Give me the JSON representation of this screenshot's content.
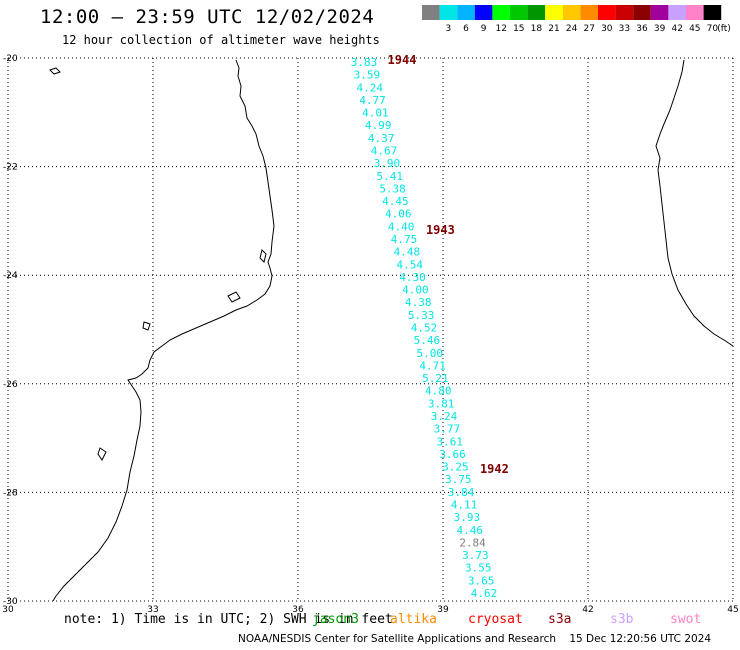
{
  "header": {
    "title": "12:00 — 23:59 UTC 12/02/2024",
    "subtitle": "12 hour collection of altimeter wave heights"
  },
  "legend": {
    "labels": [
      "3",
      "6",
      "9",
      "12",
      "15",
      "18",
      "21",
      "24",
      "27",
      "30",
      "33",
      "36",
      "39",
      "42",
      "45",
      "70"
    ],
    "unit": "(ft)",
    "colors": [
      "#808080",
      "#00e5e5",
      "#00b4ff",
      "#0000ff",
      "#00ff00",
      "#00c800",
      "#009600",
      "#ffff00",
      "#ffc800",
      "#ff8c00",
      "#ff0000",
      "#c80000",
      "#8c0000",
      "#a0009b",
      "#c8a0ff",
      "#ff82c8",
      "#000000"
    ]
  },
  "map": {
    "lon_range": [
      30,
      45
    ],
    "lat_range": [
      -30,
      -20
    ],
    "lon_ticks": [
      "30",
      "33",
      "36",
      "39",
      "42",
      "45"
    ],
    "lat_ticks": [
      "-20",
      "-22",
      "-24",
      "-26",
      "-28",
      "-30"
    ],
    "grid": "dotted",
    "swh_values": [
      {
        "v": "3.83",
        "c": "#00e5e5"
      },
      {
        "v": "3.59",
        "c": "#00e5e5"
      },
      {
        "v": "4.24",
        "c": "#00e5e5"
      },
      {
        "v": "4.77",
        "c": "#00e5e5"
      },
      {
        "v": "4.01",
        "c": "#00e5e5"
      },
      {
        "v": "4.99",
        "c": "#00e5e5"
      },
      {
        "v": "4.37",
        "c": "#00e5e5"
      },
      {
        "v": "4.67",
        "c": "#00e5e5"
      },
      {
        "v": "3.90",
        "c": "#00e5e5"
      },
      {
        "v": "5.41",
        "c": "#00e5e5"
      },
      {
        "v": "5.38",
        "c": "#00e5e5"
      },
      {
        "v": "4.45",
        "c": "#00e5e5"
      },
      {
        "v": "4.06",
        "c": "#00e5e5"
      },
      {
        "v": "4.40",
        "c": "#00e5e5"
      },
      {
        "v": "4.75",
        "c": "#00e5e5"
      },
      {
        "v": "4.48",
        "c": "#00e5e5"
      },
      {
        "v": "4.54",
        "c": "#00e5e5"
      },
      {
        "v": "4.30",
        "c": "#00e5e5"
      },
      {
        "v": "4.00",
        "c": "#00e5e5"
      },
      {
        "v": "4.38",
        "c": "#00e5e5"
      },
      {
        "v": "5.33",
        "c": "#00e5e5"
      },
      {
        "v": "4.52",
        "c": "#00e5e5"
      },
      {
        "v": "5.46",
        "c": "#00e5e5"
      },
      {
        "v": "5.00",
        "c": "#00e5e5"
      },
      {
        "v": "4.71",
        "c": "#00e5e5"
      },
      {
        "v": "5.21",
        "c": "#00e5e5"
      },
      {
        "v": "4.80",
        "c": "#00e5e5"
      },
      {
        "v": "3.81",
        "c": "#00e5e5"
      },
      {
        "v": "3.24",
        "c": "#00e5e5"
      },
      {
        "v": "3.77",
        "c": "#00e5e5"
      },
      {
        "v": "3.61",
        "c": "#00e5e5"
      },
      {
        "v": "3.66",
        "c": "#00e5e5"
      },
      {
        "v": "3.25",
        "c": "#00e5e5"
      },
      {
        "v": "3.75",
        "c": "#00e5e5"
      },
      {
        "v": "3.84",
        "c": "#00e5e5"
      },
      {
        "v": "4.11",
        "c": "#00e5e5"
      },
      {
        "v": "3.93",
        "c": "#00e5e5"
      },
      {
        "v": "4.46",
        "c": "#00e5e5"
      },
      {
        "v": "2.84",
        "c": "#808080"
      },
      {
        "v": "3.73",
        "c": "#00e5e5"
      },
      {
        "v": "3.55",
        "c": "#00e5e5"
      },
      {
        "v": "3.65",
        "c": "#00e5e5"
      },
      {
        "v": "4.62",
        "c": "#00e5e5"
      }
    ],
    "track_times": [
      "1944",
      "1943",
      "1942"
    ]
  },
  "note": {
    "text": "note: 1) Time is in UTC; 2) SWH is in feet",
    "satellites": [
      {
        "name": "jason3",
        "color": "#009600"
      },
      {
        "name": "altika",
        "color": "#ff8c00"
      },
      {
        "name": "cryosat",
        "color": "#ff0000"
      },
      {
        "name": "s3a",
        "color": "#8c0000"
      },
      {
        "name": "s3b",
        "color": "#c8a0ff"
      },
      {
        "name": "swot",
        "color": "#ff82c8"
      }
    ]
  },
  "footer": {
    "credit": "NOAA/NESDIS Center for Satellite Applications and Research    15 Dec 12:20:56 UTC 2024"
  }
}
